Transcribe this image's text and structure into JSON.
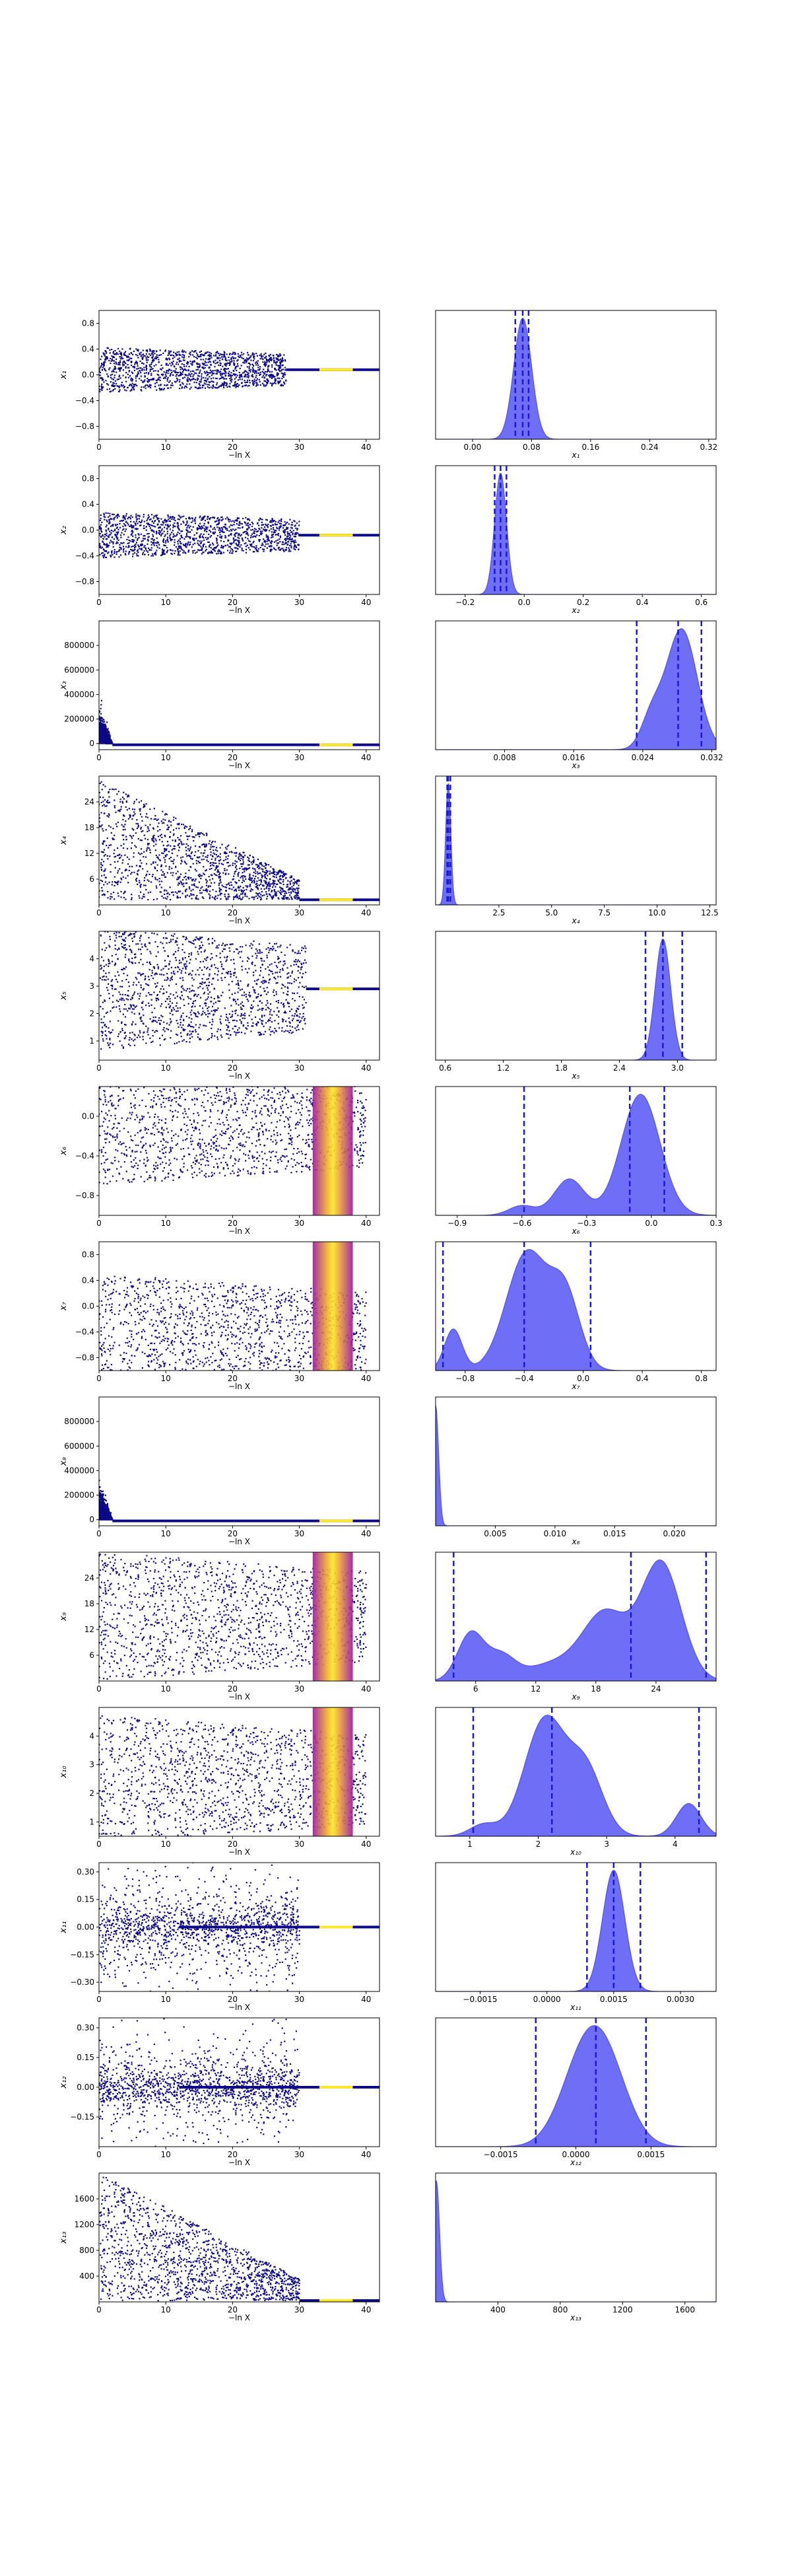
{
  "figure": {
    "xlabel_trace": "−ln X"
  },
  "colors": {
    "scatter": "#0d0887",
    "kde_fill": "#5555f5",
    "kde_line": "#3333ee",
    "quantile": "#1a1ad6",
    "hot": [
      "#fde725",
      "#f0a830",
      "#d4507a",
      "#9b179e"
    ]
  },
  "chart_data": [
    {
      "param": "x₁",
      "type": "scatter",
      "trace": {
        "ylim": [
          -1.0,
          1.0
        ],
        "yticks": [
          "-0.8",
          "-0.4",
          "0.0",
          "0.4",
          "0.8"
        ],
        "xticks": [
          "0",
          "10",
          "20",
          "30",
          "40"
        ],
        "xlim": [
          0,
          42
        ],
        "center": 0.08,
        "spread": 0.7,
        "converge_at": 28
      },
      "kde": {
        "xlim": [
          -0.05,
          0.33
        ],
        "xticks": [
          "0.00",
          "0.08",
          "0.16",
          "0.24",
          "0.32"
        ],
        "peaks": [
          [
            0.068,
            0.012,
            1.0
          ]
        ],
        "quantiles": [
          0.058,
          0.068,
          0.076
        ]
      }
    },
    {
      "param": "x₂",
      "type": "scatter",
      "trace": {
        "ylim": [
          -1.0,
          1.0
        ],
        "yticks": [
          "-0.8",
          "-0.4",
          "0.0",
          "0.4",
          "0.8"
        ],
        "xticks": [
          "0",
          "10",
          "20",
          "30",
          "40"
        ],
        "xlim": [
          0,
          42
        ],
        "center": -0.08,
        "spread": 0.7,
        "converge_at": 30
      },
      "kde": {
        "xlim": [
          -0.3,
          0.65
        ],
        "xticks": [
          "-0.2",
          "0.0",
          "0.2",
          "0.4",
          "0.6"
        ],
        "peaks": [
          [
            -0.08,
            0.02,
            1.0
          ]
        ],
        "quantiles": [
          -0.1,
          -0.08,
          -0.06
        ]
      }
    },
    {
      "param": "x₃",
      "type": "scatter",
      "trace": {
        "ylim": [
          -50000,
          1000000
        ],
        "yticks": [
          "0",
          "200000",
          "400000",
          "600000",
          "800000"
        ],
        "xticks": [
          "0",
          "10",
          "20",
          "30",
          "40"
        ],
        "xlim": [
          0,
          42
        ],
        "center": 0.0,
        "spread": 0.0,
        "converge_at": 2,
        "mode": "spike"
      },
      "kde": {
        "xlim": [
          0.0,
          0.0325
        ],
        "xticks": [
          "0.008",
          "0.016",
          "0.024",
          "0.032"
        ],
        "peaks": [
          [
            0.0285,
            0.0018,
            1.0
          ],
          [
            0.025,
            0.0012,
            0.25
          ]
        ],
        "quantiles": [
          0.0233,
          0.0281,
          0.0308
        ]
      }
    },
    {
      "param": "x₄",
      "type": "scatter",
      "trace": {
        "ylim": [
          0,
          30
        ],
        "yticks": [
          "6",
          "12",
          "18",
          "24"
        ],
        "xticks": [
          "0",
          "10",
          "20",
          "30",
          "40"
        ],
        "xlim": [
          0,
          42
        ],
        "center": 1.2,
        "spread": 28,
        "converge_at": 30,
        "mode": "pos"
      },
      "kde": {
        "xlim": [
          -0.5,
          12.8
        ],
        "xticks": [
          "2.5",
          "5.0",
          "7.5",
          "10.0",
          "12.5"
        ],
        "peaks": [
          [
            0.1,
            0.12,
            1.0
          ]
        ],
        "quantiles": [
          0.05,
          0.1,
          0.2
        ]
      }
    },
    {
      "param": "x₅",
      "type": "scatter",
      "trace": {
        "ylim": [
          0.3,
          5.0
        ],
        "yticks": [
          "1",
          "2",
          "3",
          "4"
        ],
        "xticks": [
          "0",
          "10",
          "20",
          "30",
          "40"
        ],
        "xlim": [
          0,
          42
        ],
        "center": 2.9,
        "spread": 4.5,
        "converge_at": 31
      },
      "kde": {
        "xlim": [
          0.5,
          3.4
        ],
        "xticks": [
          "0.6",
          "1.2",
          "1.8",
          "2.4",
          "3.0"
        ],
        "peaks": [
          [
            2.85,
            0.08,
            1.0
          ]
        ],
        "quantiles": [
          2.67,
          2.85,
          3.05
        ]
      }
    },
    {
      "param": "x₆",
      "type": "scatter",
      "trace": {
        "ylim": [
          -1.0,
          0.3
        ],
        "yticks": [
          "-0.8",
          "-0.4",
          "0.0"
        ],
        "xticks": [
          "0",
          "10",
          "20",
          "30",
          "40"
        ],
        "xlim": [
          0,
          42
        ],
        "center": -0.1,
        "spread": 1.2,
        "converge_at": 40,
        "mode": "band"
      },
      "kde": {
        "xlim": [
          -1.0,
          0.3
        ],
        "xticks": [
          "-0.9",
          "-0.6",
          "-0.3",
          "0.0",
          "0.3"
        ],
        "peaks": [
          [
            -0.05,
            0.09,
            1.0
          ],
          [
            -0.38,
            0.07,
            0.3
          ],
          [
            -0.6,
            0.06,
            0.08
          ]
        ],
        "quantiles": [
          -0.59,
          -0.1,
          0.06
        ]
      }
    },
    {
      "param": "x₇",
      "type": "scatter",
      "trace": {
        "ylim": [
          -1.0,
          1.0
        ],
        "yticks": [
          "-0.8",
          "-0.4",
          "0.0",
          "0.4",
          "0.8"
        ],
        "xticks": [
          "0",
          "10",
          "20",
          "30",
          "40"
        ],
        "xlim": [
          0,
          42
        ],
        "center": -0.4,
        "spread": 1.8,
        "converge_at": 40,
        "mode": "band"
      },
      "kde": {
        "xlim": [
          -1.0,
          0.9
        ],
        "xticks": [
          "-0.8",
          "-0.4",
          "0.0",
          "0.4",
          "0.8"
        ],
        "peaks": [
          [
            -0.38,
            0.14,
            1.0
          ],
          [
            -0.12,
            0.1,
            0.6
          ],
          [
            -0.88,
            0.06,
            0.35
          ]
        ],
        "quantiles": [
          -0.95,
          -0.4,
          0.05
        ]
      }
    },
    {
      "param": "x₈",
      "type": "scatter",
      "trace": {
        "ylim": [
          -50000,
          1000000
        ],
        "yticks": [
          "0",
          "200000",
          "400000",
          "600000",
          "800000"
        ],
        "xticks": [
          "0",
          "10",
          "20",
          "30",
          "40"
        ],
        "xlim": [
          0,
          42
        ],
        "center": 0.0,
        "spread": 0.0,
        "converge_at": 2,
        "mode": "spike"
      },
      "kde": {
        "xlim": [
          0.0,
          0.0235
        ],
        "xticks": [
          "0.005",
          "0.010",
          "0.015",
          "0.020"
        ],
        "peaks": [
          [
            0.0,
            0.00025,
            1.0
          ]
        ],
        "quantiles": []
      }
    },
    {
      "param": "x₉",
      "type": "scatter",
      "trace": {
        "ylim": [
          0,
          30
        ],
        "yticks": [
          "6",
          "12",
          "18",
          "24"
        ],
        "xticks": [
          "0",
          "10",
          "20",
          "30",
          "40"
        ],
        "xlim": [
          0,
          42
        ],
        "center": 15,
        "spread": 30,
        "converge_at": 40,
        "mode": "band"
      },
      "kde": {
        "xlim": [
          2.0,
          30.0
        ],
        "xticks": [
          "6",
          "12",
          "18",
          "24"
        ],
        "peaks": [
          [
            24.5,
            2.0,
            1.0
          ],
          [
            19,
            2.2,
            0.55
          ],
          [
            5.5,
            1.3,
            0.4
          ],
          [
            8.5,
            1.4,
            0.2
          ],
          [
            14,
            3,
            0.15
          ]
        ],
        "quantiles": [
          3.8,
          21.5,
          29.0
        ]
      }
    },
    {
      "param": "x₁₀",
      "type": "scatter",
      "trace": {
        "ylim": [
          0.5,
          5.0
        ],
        "yticks": [
          "1",
          "2",
          "3",
          "4"
        ],
        "xticks": [
          "0",
          "10",
          "20",
          "30",
          "40"
        ],
        "xlim": [
          0,
          42
        ],
        "center": 2.5,
        "spread": 4.5,
        "converge_at": 40,
        "mode": "band"
      },
      "kde": {
        "xlim": [
          0.5,
          4.6
        ],
        "xticks": [
          "1",
          "2",
          "3",
          "4"
        ],
        "peaks": [
          [
            2.1,
            0.3,
            1.0
          ],
          [
            2.7,
            0.25,
            0.55
          ],
          [
            4.2,
            0.18,
            0.28
          ],
          [
            1.2,
            0.2,
            0.1
          ]
        ],
        "quantiles": [
          1.05,
          2.2,
          4.35
        ]
      }
    },
    {
      "param": "x₁₁",
      "type": "scatter",
      "trace": {
        "ylim": [
          -0.35,
          0.35
        ],
        "yticks": [
          "-0.30",
          "-0.15",
          "0.00",
          "0.15",
          "0.30"
        ],
        "xticks": [
          "0",
          "10",
          "20",
          "30",
          "40"
        ],
        "xlim": [
          0,
          42
        ],
        "center": 0.0,
        "spread": 0.55,
        "converge_at": 12,
        "mode": "funnel"
      },
      "kde": {
        "xlim": [
          -0.0025,
          0.0038
        ],
        "xticks": [
          "-0.0015",
          "0.0000",
          "0.0015",
          "0.0030"
        ],
        "peaks": [
          [
            0.0015,
            0.00025,
            1.0
          ]
        ],
        "quantiles": [
          0.0009,
          0.0015,
          0.0021
        ]
      }
    },
    {
      "param": "x₁₂",
      "type": "scatter",
      "trace": {
        "ylim": [
          -0.3,
          0.35
        ],
        "yticks": [
          "-0.15",
          "0.00",
          "0.15",
          "0.30"
        ],
        "xticks": [
          "0",
          "10",
          "20",
          "30",
          "40"
        ],
        "xlim": [
          0,
          42
        ],
        "center": 0.0,
        "spread": 0.45,
        "converge_at": 12,
        "mode": "funnel"
      },
      "kde": {
        "xlim": [
          -0.0028,
          0.0028
        ],
        "xticks": [
          "-0.0015",
          "0.0000",
          "0.0015"
        ],
        "peaks": [
          [
            0.0001,
            0.00045,
            0.9
          ],
          [
            0.0006,
            0.00045,
            1.0
          ]
        ],
        "quantiles": [
          -0.0008,
          0.0004,
          0.0014
        ]
      }
    },
    {
      "param": "x₁₃",
      "type": "scatter",
      "trace": {
        "ylim": [
          0,
          2000
        ],
        "yticks": [
          "400",
          "800",
          "1200",
          "1600"
        ],
        "xticks": [
          "0",
          "10",
          "20",
          "30",
          "40"
        ],
        "xlim": [
          0,
          42
        ],
        "center": 20,
        "spread": 2000,
        "converge_at": 30,
        "mode": "pos"
      },
      "kde": {
        "xlim": [
          0,
          1800
        ],
        "xticks": [
          "400",
          "800",
          "1200",
          "1600"
        ],
        "peaks": [
          [
            5,
            20,
            1.0
          ]
        ],
        "quantiles": []
      }
    }
  ]
}
